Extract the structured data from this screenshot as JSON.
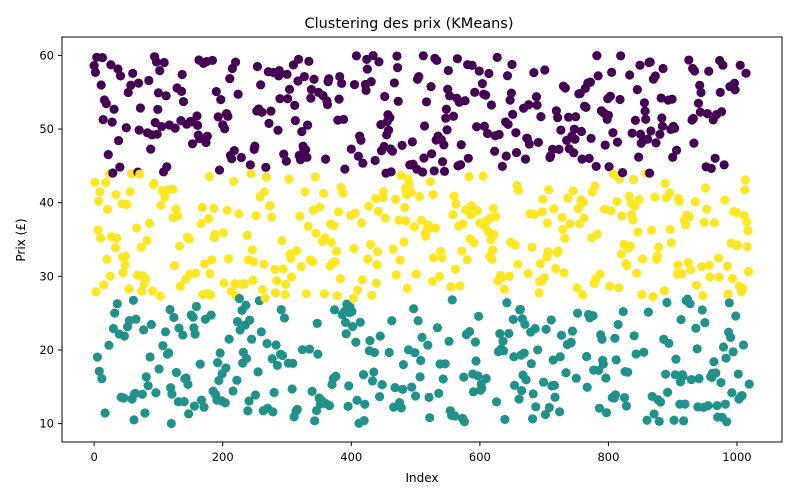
{
  "chart_data": {
    "type": "scatter",
    "title": "Clustering des prix (KMeans)",
    "xlabel": "Index",
    "ylabel": "Prix (£)",
    "xlim": [
      -50,
      1070
    ],
    "ylim": [
      7.5,
      62.5
    ],
    "xticks": [
      0,
      200,
      400,
      600,
      800,
      1000
    ],
    "yticks": [
      10,
      20,
      30,
      40,
      50,
      60
    ],
    "grid": false,
    "legend": "none",
    "n_points": 1020,
    "seed": 7,
    "clusters": [
      {
        "label": 0,
        "color": "#440154",
        "y_range": [
          44,
          60
        ]
      },
      {
        "label": 1,
        "color": "#fde725",
        "y_range": [
          27,
          44
        ]
      },
      {
        "label": 2,
        "color": "#21918c",
        "y_range": [
          10,
          27
        ]
      }
    ]
  }
}
